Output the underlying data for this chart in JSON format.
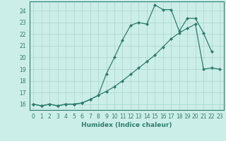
{
  "title": "",
  "xlabel": "Humidex (Indice chaleur)",
  "background_color": "#cceee8",
  "line_color": "#2e7d6e",
  "grid_color": "#aad4ce",
  "xlim": [
    -0.5,
    23.5
  ],
  "ylim": [
    15.5,
    24.8
  ],
  "yticks": [
    16,
    17,
    18,
    19,
    20,
    21,
    22,
    23,
    24
  ],
  "xticks": [
    0,
    1,
    2,
    3,
    4,
    5,
    6,
    7,
    8,
    9,
    10,
    11,
    12,
    13,
    14,
    15,
    16,
    17,
    18,
    19,
    20,
    21,
    22,
    23
  ],
  "xtick_labels": [
    "0",
    "1",
    "2",
    "3",
    "4",
    "5",
    "6",
    "7",
    "8",
    "9",
    "10",
    "11",
    "12",
    "13",
    "14",
    "15",
    "16",
    "17",
    "18",
    "19",
    "20",
    "21",
    "22",
    "23"
  ],
  "line1_x": [
    0,
    1,
    2,
    3,
    4,
    5,
    6,
    7,
    8,
    9,
    10,
    11,
    12,
    13,
    14,
    15,
    16,
    17,
    18,
    19,
    20,
    21,
    22
  ],
  "line1_y": [
    16.0,
    15.85,
    16.0,
    15.85,
    16.0,
    16.0,
    16.1,
    16.4,
    16.75,
    18.6,
    20.0,
    21.5,
    22.75,
    23.0,
    22.85,
    24.5,
    24.1,
    24.1,
    22.25,
    23.35,
    23.35,
    22.1,
    20.5
  ],
  "line2_x": [
    0,
    1,
    2,
    3,
    4,
    5,
    6,
    7,
    8,
    9,
    10,
    11,
    12,
    13,
    14,
    15,
    16,
    17,
    18,
    19,
    20,
    21,
    22,
    23
  ],
  "line2_y": [
    16.0,
    15.85,
    16.0,
    15.85,
    16.0,
    16.0,
    16.1,
    16.4,
    16.75,
    17.1,
    17.5,
    18.0,
    18.55,
    19.1,
    19.65,
    20.2,
    20.9,
    21.6,
    22.1,
    22.5,
    22.85,
    19.0,
    19.1,
    19.0
  ]
}
